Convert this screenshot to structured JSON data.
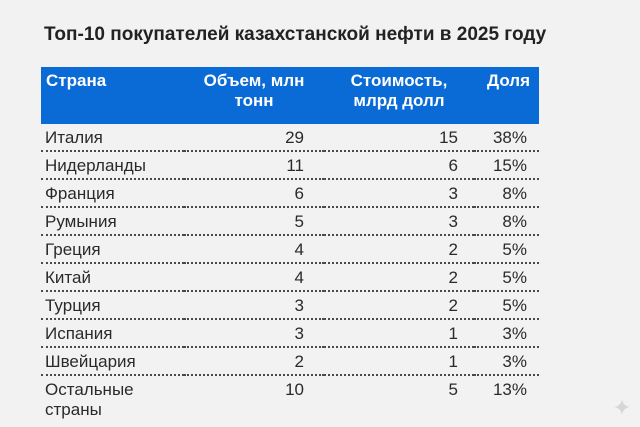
{
  "title": "Топ-10 покупателей казахстанской нефти в 2025 году",
  "table": {
    "headers": {
      "country": "Страна",
      "volume": "Объем, млн тонн",
      "cost": "Стоимость, млрд долл",
      "share": "Доля"
    },
    "rows": [
      {
        "country": "Италия",
        "volume": "29",
        "cost": "15",
        "share": "38%"
      },
      {
        "country": "Нидерланды",
        "volume": "11",
        "cost": "6",
        "share": "15%"
      },
      {
        "country": "Франция",
        "volume": "6",
        "cost": "3",
        "share": "8%"
      },
      {
        "country": "Румыния",
        "volume": "5",
        "cost": "3",
        "share": "8%"
      },
      {
        "country": "Греция",
        "volume": "4",
        "cost": "2",
        "share": "5%"
      },
      {
        "country": "Китай",
        "volume": "4",
        "cost": "2",
        "share": "5%"
      },
      {
        "country": "Турция",
        "volume": "3",
        "cost": "2",
        "share": "5%"
      },
      {
        "country": "Испания",
        "volume": "3",
        "cost": "1",
        "share": "3%"
      },
      {
        "country": "Швейцария",
        "volume": "2",
        "cost": "1",
        "share": "3%"
      },
      {
        "country": "Остальные страны",
        "volume": "10",
        "cost": "5",
        "share": "13%"
      }
    ]
  },
  "colors": {
    "header_bg": "#0a6ad6",
    "header_text": "#ffffff",
    "page_bg": "#f2f2f2"
  },
  "icons": {
    "corner": "sparkle-icon"
  }
}
